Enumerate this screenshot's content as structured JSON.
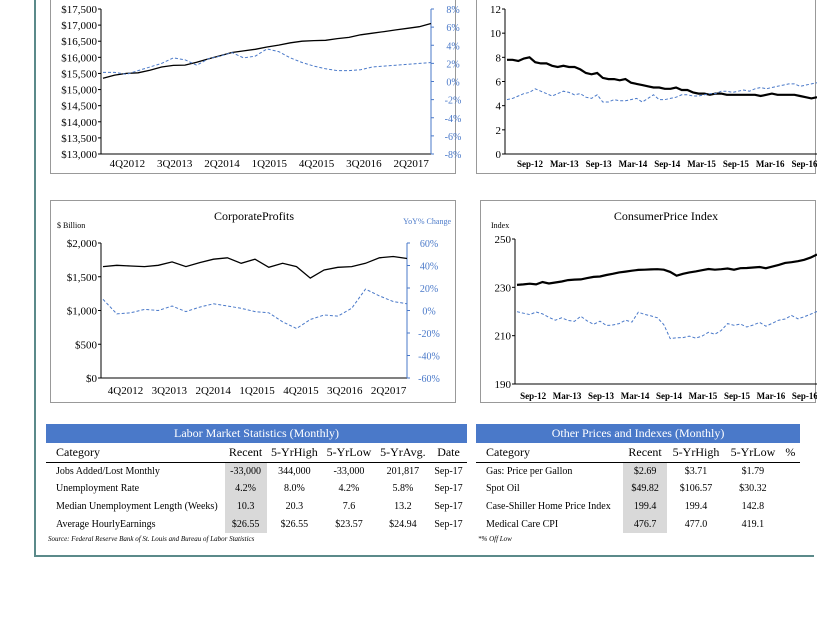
{
  "charts": [
    {
      "id": "chart1",
      "type": "line",
      "title": "",
      "left_axis": {
        "ticks": [
          "$17,500",
          "$17,000",
          "$16,500",
          "$16,000",
          "$15,500",
          "$15,000",
          "$14,500",
          "$14,000",
          "$13,500",
          "$13,000"
        ],
        "range": [
          13000,
          17500
        ]
      },
      "right_axis": {
        "ticks": [
          "8%",
          "6%",
          "4%",
          "2%",
          "0%",
          "-2%",
          "-4%",
          "-6%",
          "-8%"
        ],
        "range": [
          -8,
          8
        ]
      },
      "x_ticks": [
        "4Q2012",
        "3Q2013",
        "2Q2014",
        "1Q2015",
        "4Q2015",
        "3Q2016",
        "2Q2017"
      ],
      "series": [
        {
          "style": "solid",
          "axis": "left",
          "values": [
            15350,
            15450,
            15500,
            15520,
            15600,
            15700,
            15750,
            15760,
            15850,
            15950,
            16050,
            16150,
            16200,
            16250,
            16320,
            16380,
            16450,
            16500,
            16520,
            16530,
            16580,
            16620,
            16700,
            16750,
            16800,
            16850,
            16900,
            16950,
            17050
          ]
        },
        {
          "style": "dashed",
          "axis": "right",
          "values": [
            1.0,
            1.0,
            0.8,
            1.2,
            1.6,
            2.0,
            2.6,
            2.4,
            1.8,
            2.5,
            2.8,
            3.2,
            2.6,
            2.8,
            3.6,
            3.3,
            2.6,
            2.1,
            1.7,
            1.4,
            1.2,
            1.2,
            1.3,
            1.6,
            1.7,
            1.8,
            1.9,
            2.0,
            2.1
          ]
        }
      ]
    },
    {
      "id": "chart2",
      "type": "line",
      "title": "",
      "left_axis": {
        "ticks": [
          "12",
          "10",
          "8",
          "6",
          "4",
          "2",
          "0"
        ],
        "range": [
          0,
          12
        ]
      },
      "x_ticks": [
        "Sep-12",
        "Mar-13",
        "Sep-13",
        "Mar-14",
        "Sep-14",
        "Mar-15",
        "Sep-15",
        "Mar-16",
        "Sep-16"
      ],
      "series": [
        {
          "style": "solid",
          "values": [
            7.8,
            7.8,
            7.7,
            7.9,
            8.0,
            7.6,
            7.5,
            7.5,
            7.3,
            7.2,
            7.3,
            7.2,
            7.2,
            7.0,
            6.7,
            6.6,
            6.7,
            6.3,
            6.2,
            6.2,
            6.1,
            6.2,
            5.9,
            5.8,
            5.7,
            5.6,
            5.5,
            5.5,
            5.4,
            5.4,
            5.5,
            5.3,
            5.3,
            5.1,
            5.0,
            5.0,
            4.9,
            5.0,
            5.0,
            4.9,
            4.9,
            4.9,
            4.9,
            4.9,
            4.9,
            4.8,
            4.9,
            5.0,
            4.9,
            4.9,
            4.9,
            4.9,
            4.8,
            4.7,
            4.6,
            4.7
          ]
        },
        {
          "style": "dashed",
          "values": [
            4.5,
            4.6,
            4.8,
            5.0,
            5.1,
            5.4,
            5.2,
            5.0,
            4.8,
            5.0,
            5.2,
            5.1,
            4.9,
            5.0,
            4.7,
            4.6,
            4.9,
            4.3,
            4.3,
            4.5,
            4.4,
            4.4,
            4.5,
            4.6,
            4.3,
            4.6,
            4.9,
            4.5,
            4.5,
            4.6,
            4.7,
            4.9,
            4.9,
            4.8,
            4.8,
            4.9,
            5.0,
            5.0,
            5.2,
            5.2,
            5.1,
            5.2,
            5.3,
            5.2,
            5.4,
            5.5,
            5.4,
            5.5,
            5.6,
            5.7,
            5.8,
            5.8,
            5.6,
            5.7,
            5.8,
            5.9
          ]
        }
      ]
    },
    {
      "id": "chart3",
      "type": "line",
      "title": "CorporateProfits",
      "left_label": "$ Billion",
      "right_label": "YoY% Change",
      "left_axis": {
        "ticks": [
          "$2,000",
          "$1,500",
          "$1,000",
          "$500",
          "$0"
        ],
        "range": [
          0,
          2000
        ]
      },
      "right_axis": {
        "ticks": [
          "60%",
          "40%",
          "20%",
          "0%",
          "-20%",
          "-40%",
          "-60%"
        ],
        "range": [
          -60,
          60
        ]
      },
      "x_ticks": [
        "4Q2012",
        "3Q2013",
        "2Q2014",
        "1Q2015",
        "4Q2015",
        "3Q2016",
        "2Q2017"
      ],
      "series": [
        {
          "style": "solid",
          "axis": "left",
          "values": [
            1650,
            1670,
            1660,
            1650,
            1670,
            1720,
            1650,
            1710,
            1760,
            1780,
            1700,
            1760,
            1640,
            1700,
            1650,
            1480,
            1600,
            1640,
            1650,
            1700,
            1780,
            1800,
            1770
          ]
        },
        {
          "style": "dashed",
          "axis": "right",
          "values": [
            10,
            -3,
            -2,
            1,
            0,
            4,
            -1,
            3,
            6,
            4,
            2,
            -1,
            -2,
            -10,
            -16,
            -8,
            -4,
            -5,
            2,
            19,
            13,
            8,
            6
          ]
        }
      ]
    },
    {
      "id": "chart4",
      "type": "line",
      "title": "ConsumerPrice Index",
      "left_label": "Index",
      "left_axis": {
        "ticks": [
          "250",
          "230",
          "210",
          "190"
        ],
        "range": [
          190,
          250
        ]
      },
      "x_ticks": [
        "Sep-12",
        "Mar-13",
        "Sep-13",
        "Mar-14",
        "Sep-14",
        "Mar-15",
        "Sep-15",
        "Mar-16",
        "Sep-16"
      ],
      "series": [
        {
          "style": "solid",
          "values": [
            231.0,
            231.2,
            231.5,
            231.2,
            232.2,
            231.6,
            232.0,
            232.4,
            233.0,
            233.2,
            233.3,
            233.8,
            234.3,
            234.5,
            235.1,
            235.6,
            236.2,
            236.5,
            236.9,
            237.2,
            237.3,
            237.4,
            237.5,
            237.3,
            236.4,
            234.8,
            235.6,
            236.2,
            236.6,
            237.1,
            237.6,
            237.3,
            237.5,
            237.8,
            237.3,
            237.9,
            238.0,
            238.2,
            238.4,
            237.9,
            238.6,
            239.3,
            240.1,
            240.4,
            240.8,
            241.4,
            242.3,
            243.6
          ]
        },
        {
          "style": "dashed",
          "values": [
            219.9,
            219.3,
            218.7,
            219.8,
            219.0,
            217.6,
            216.4,
            217.4,
            216.3,
            215.9,
            218.0,
            216.1,
            214.7,
            216.0,
            214.2,
            214.4,
            215.0,
            216.4,
            215.6,
            219.7,
            218.8,
            218.2,
            217.4,
            214.6,
            208.8,
            209.1,
            209.2,
            209.8,
            209.0,
            209.8,
            211.4,
            210.6,
            212.2,
            215.0,
            214.3,
            214.8,
            213.6,
            214.4,
            215.5,
            213.9,
            215.1,
            216.4,
            216.9,
            218.4,
            217.0,
            217.8,
            218.9,
            220.0
          ]
        }
      ]
    }
  ],
  "labor_table": {
    "title": "Labor Market Statistics  (Monthly)",
    "columns": [
      "Category",
      "Recent",
      "5-YrHigh",
      "5-YrLow",
      "5-YrAvg.",
      "Date"
    ],
    "rows": [
      [
        "Jobs Added/Lost Monthly",
        "-33,000",
        "344,000",
        "-33,000",
        "201,817",
        "Sep-17"
      ],
      [
        "Unemployment Rate",
        "4.2%",
        "8.0%",
        "4.2%",
        "5.8%",
        "Sep-17"
      ],
      [
        "Median Unemployment Length (Weeks)",
        "10.3",
        "20.3",
        "7.6",
        "13.2",
        "Sep-17"
      ],
      [
        "Average HourlyEarnings",
        "$26.55",
        "$26.55",
        "$23.57",
        "$24.94",
        "Sep-17"
      ]
    ]
  },
  "prices_table": {
    "title": "Other Prices  and Indexes  (Monthly)",
    "columns": [
      "Category",
      "Recent",
      "5-YrHigh",
      "5-YrLow",
      "%"
    ],
    "rows": [
      [
        "Gas: Price per Gallon",
        "$2.69",
        "$3.71",
        "$1.79",
        ""
      ],
      [
        "Spot Oil",
        "$49.82",
        "$106.57",
        "$30.32",
        ""
      ],
      [
        "Case-Shiller Home Price Index",
        "199.4",
        "199.4",
        "142.8",
        ""
      ],
      [
        "Medical Care CPI",
        "476.7",
        "477.0",
        "419.1",
        ""
      ]
    ]
  },
  "source_note": "Source:  Federal  Reserve  Bank of St. Louis  and Bureau  of Labor  Statistics",
  "off_low_note": "*% Off Low",
  "colors": {
    "table_header": "#4a79c9",
    "right_axis": "#4a79c9",
    "dashed_series": "#4a79c9",
    "shade": "#d9d9d9",
    "frame": "#5b8a8a"
  }
}
